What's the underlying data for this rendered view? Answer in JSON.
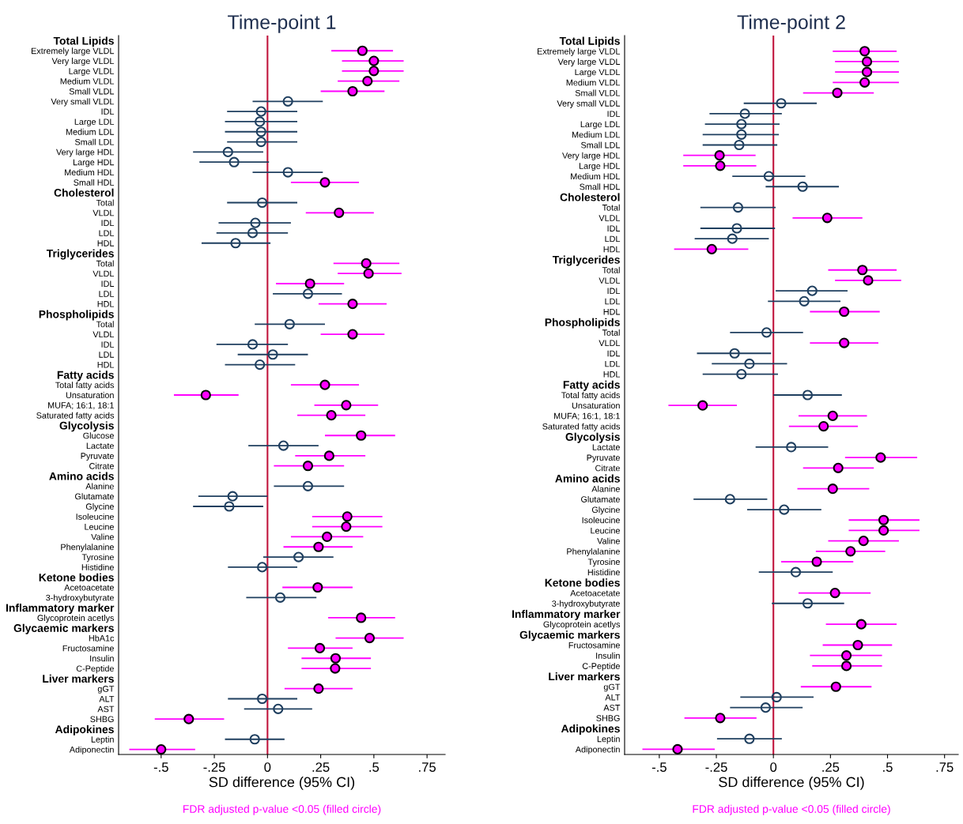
{
  "chart_data": [
    {
      "type": "scatter",
      "orientation": "horizontal",
      "title": "Time-point 1",
      "xlabel": "SD difference (95% CI)",
      "marker": "circle",
      "categories": [
        "Total Lipids",
        "Extremely large VLDL",
        "Very large VLDL",
        "Large VLDL",
        "Medium VLDL",
        "Small VLDL",
        "Very small VLDL",
        "IDL",
        "Large LDL",
        "Medium LDL",
        "Small LDL",
        "Very large HDL",
        "Large HDL",
        "Medium HDL",
        "Small HDL",
        "Cholesterol",
        "Total",
        "VLDL",
        "IDL",
        "LDL",
        "HDL",
        "Triglycerides",
        "Total",
        "VLDL",
        "IDL",
        "LDL",
        "HDL",
        "Phospholipids",
        "Total",
        "VLDL",
        "IDL",
        "LDL",
        "HDL",
        "Fatty acids",
        "Total fatty acids",
        "Unsaturation",
        "MUFA; 16:1, 18:1",
        "Saturated fatty acids",
        "Glycolysis",
        "Glucose",
        "Lactate",
        "Pyruvate",
        "Citrate",
        "Amino acids",
        "Alanine",
        "Glutamate",
        "Glycine",
        "Isoleucine",
        "Leucine",
        "Valine",
        "Phenylalanine",
        "Tyrosine",
        "Histidine",
        "Ketone bodies",
        "Acetoacetate",
        "3-hydroxybutyrate",
        "Inflammatory marker",
        "Glycoprotein acetlys",
        "Glycaemic markers",
        "HbA1c",
        "Fructosamine",
        "Insulin",
        "C-Peptide",
        "Liver markers",
        "gGT",
        "ALT",
        "AST",
        "SHBG",
        "Adipokines",
        "Leptin",
        "Adiponectin"
      ],
      "series": [
        {
          "color": "#ff00ff",
          "values": [
            null,
            0.446,
            0.5,
            0.5,
            0.47,
            0.4,
            null,
            null,
            null,
            null,
            null,
            null,
            null,
            null,
            0.27,
            null,
            null,
            0.336,
            null,
            null,
            null,
            null,
            0.464,
            0.475,
            0.2,
            null,
            0.4,
            null,
            null,
            0.4,
            null,
            null,
            null,
            null,
            0.27,
            -0.29,
            0.37,
            0.3,
            null,
            0.44,
            null,
            0.29,
            0.19,
            null,
            null,
            null,
            null,
            0.375,
            0.37,
            0.28,
            0.24,
            null,
            null,
            null,
            0.236,
            null,
            null,
            0.44,
            null,
            0.48,
            0.246,
            0.32,
            0.318,
            null,
            0.24,
            null,
            null,
            -0.37,
            null,
            null,
            -0.5
          ],
          "errors": [
            null,
            [
              0.3,
              0.59
            ],
            [
              0.35,
              0.64
            ],
            [
              0.35,
              0.64
            ],
            [
              0.33,
              0.62
            ],
            [
              0.25,
              0.55
            ],
            null,
            null,
            null,
            null,
            null,
            null,
            null,
            null,
            [
              0.11,
              0.43
            ],
            null,
            null,
            [
              0.18,
              0.5
            ],
            null,
            null,
            null,
            null,
            [
              0.31,
              0.62
            ],
            [
              0.33,
              0.63
            ],
            [
              0.04,
              0.36
            ],
            null,
            [
              0.24,
              0.56
            ],
            null,
            null,
            [
              0.25,
              0.55
            ],
            null,
            null,
            null,
            null,
            [
              0.11,
              0.43
            ],
            [
              -0.44,
              -0.136
            ],
            [
              0.22,
              0.52
            ],
            [
              0.14,
              0.46
            ],
            null,
            [
              0.27,
              0.6
            ],
            null,
            [
              0.13,
              0.46
            ],
            [
              0.03,
              0.36
            ],
            null,
            null,
            null,
            null,
            [
              0.21,
              0.54
            ],
            [
              0.21,
              0.54
            ],
            [
              0.11,
              0.45
            ],
            [
              0.075,
              0.4
            ],
            null,
            null,
            null,
            [
              0.07,
              0.4
            ],
            null,
            null,
            [
              0.285,
              0.6
            ],
            null,
            [
              0.32,
              0.64
            ],
            [
              0.096,
              0.4
            ],
            [
              0.16,
              0.486
            ],
            [
              0.16,
              0.486
            ],
            null,
            [
              0.08,
              0.4
            ],
            null,
            null,
            [
              -0.53,
              -0.204
            ],
            null,
            null,
            [
              -0.65,
              -0.34
            ]
          ]
        },
        {
          "color": "#1f3f5f",
          "values": [
            null,
            null,
            null,
            null,
            null,
            null,
            0.096,
            -0.03,
            -0.036,
            -0.03,
            -0.03,
            -0.186,
            -0.157,
            0.096,
            null,
            null,
            -0.025,
            null,
            -0.057,
            -0.07,
            -0.15,
            null,
            null,
            null,
            null,
            0.19,
            null,
            null,
            0.104,
            null,
            -0.07,
            0.025,
            -0.036,
            null,
            null,
            null,
            null,
            null,
            null,
            null,
            0.075,
            null,
            null,
            null,
            0.19,
            -0.164,
            -0.18,
            null,
            null,
            null,
            null,
            0.146,
            -0.025,
            null,
            null,
            0.06,
            null,
            null,
            null,
            null,
            null,
            null,
            null,
            null,
            null,
            -0.025,
            0.05,
            null,
            null,
            -0.06,
            null
          ],
          "errors": [
            null,
            null,
            null,
            null,
            null,
            null,
            [
              -0.07,
              0.26
            ],
            [
              -0.19,
              0.14
            ],
            [
              -0.2,
              0.14
            ],
            [
              -0.2,
              0.14
            ],
            [
              -0.19,
              0.14
            ],
            [
              -0.35,
              -0.02
            ],
            [
              -0.32,
              0.007
            ],
            [
              -0.07,
              0.26
            ],
            null,
            null,
            [
              -0.19,
              0.14
            ],
            null,
            [
              -0.23,
              0.11
            ],
            [
              -0.24,
              0.096
            ],
            [
              -0.31,
              0.014
            ],
            null,
            null,
            null,
            null,
            [
              0.025,
              0.35
            ],
            null,
            null,
            [
              -0.06,
              0.27
            ],
            null,
            [
              -0.24,
              0.096
            ],
            [
              -0.14,
              0.19
            ],
            [
              -0.2,
              0.13
            ],
            null,
            null,
            null,
            null,
            null,
            null,
            null,
            [
              -0.09,
              0.24
            ],
            null,
            null,
            null,
            [
              0.03,
              0.36
            ],
            [
              -0.325,
              0
            ],
            [
              -0.35,
              -0.02
            ],
            null,
            null,
            null,
            null,
            [
              -0.02,
              0.31
            ],
            [
              -0.186,
              0.14
            ],
            null,
            null,
            [
              -0.1,
              0.23
            ],
            null,
            null,
            null,
            null,
            null,
            null,
            null,
            null,
            null,
            [
              -0.186,
              0.14
            ],
            [
              -0.11,
              0.21
            ],
            null,
            null,
            [
              -0.2,
              0.08
            ],
            null
          ]
        }
      ],
      "xlim": [
        -0.7,
        0.835
      ],
      "xticks": [
        {
          "value": -0.5,
          "label": "-.5"
        },
        {
          "value": -0.25,
          "label": "-.25"
        },
        0,
        {
          "value": 0.25,
          "label": ".25"
        },
        {
          "value": 0.5,
          "label": ".5"
        },
        {
          "value": 0.75,
          "label": ".75"
        }
      ],
      "ref_lines": [
        {
          "axis": "x",
          "value": 0,
          "color": "#c0143c"
        }
      ],
      "annotations": [
        "FDR adjusted p-value <0.05 (filled circle)"
      ]
    },
    {
      "type": "scatter",
      "orientation": "horizontal",
      "title": "Time-point 2",
      "xlabel": "SD difference (95% CI)",
      "marker": "circle",
      "categories": [
        "Total Lipids",
        "Extremely large VLDL",
        "Very large VLDL",
        "Large VLDL",
        "Medium VLDL",
        "Small VLDL",
        "Very small VLDL",
        "IDL",
        "Large LDL",
        "Medium LDL",
        "Small LDL",
        "Very large HDL",
        "Large HDL",
        "Medium HDL",
        "Small HDL",
        "Cholesterol",
        "Total",
        "VLDL",
        "IDL",
        "LDL",
        "HDL",
        "Triglycerides",
        "Total",
        "VLDL",
        "IDL",
        "LDL",
        "HDL",
        "Phospholipids",
        "Total",
        "VLDL",
        "IDL",
        "LDL",
        "HDL",
        "Fatty acids",
        "Total fatty acids",
        "Unsaturation",
        "MUFA; 16:1, 18:1",
        "Saturated fatty acids",
        "Glycolysis",
        "Lactate",
        "Pyruvate",
        "Citrate",
        "Amino acids",
        "Alanine",
        "Glutamate",
        "Glycine",
        "Isoleucine",
        "Leucine",
        "Valine",
        "Phenylalanine",
        "Tyrosine",
        "Histidine",
        "Ketone bodies",
        "Acetoacetate",
        "3-hydroxybutyrate",
        "Inflammatory marker",
        "Glycoprotein acetlys",
        "Glycaemic markers",
        "Fructosamine",
        "Insulin",
        "C-Peptide",
        "Liver markers",
        "gGT",
        "ALT",
        "AST",
        "SHBG",
        "Adipokines",
        "Leptin",
        "Adiponectin"
      ],
      "series": [
        {
          "color": "#ff00ff",
          "values": [
            null,
            0.4,
            0.41,
            0.41,
            0.4,
            0.28,
            null,
            null,
            null,
            null,
            null,
            -0.236,
            -0.233,
            null,
            null,
            null,
            null,
            0.236,
            null,
            null,
            -0.27,
            null,
            0.39,
            0.415,
            null,
            null,
            0.31,
            null,
            null,
            0.31,
            null,
            null,
            null,
            null,
            null,
            -0.31,
            0.26,
            0.22,
            null,
            null,
            0.47,
            0.284,
            null,
            0.26,
            null,
            null,
            0.483,
            0.483,
            0.395,
            0.338,
            0.19,
            null,
            null,
            0.27,
            null,
            null,
            0.385,
            null,
            0.37,
            0.32,
            0.32,
            null,
            0.274,
            null,
            null,
            -0.233,
            null,
            null,
            -0.42
          ],
          "errors": [
            null,
            [
              0.26,
              0.54
            ],
            [
              0.27,
              0.55
            ],
            [
              0.27,
              0.55
            ],
            [
              0.26,
              0.55
            ],
            [
              0.13,
              0.44
            ],
            null,
            null,
            null,
            null,
            null,
            [
              -0.395,
              -0.078
            ],
            [
              -0.395,
              -0.075
            ],
            null,
            null,
            null,
            null,
            [
              0.084,
              0.39
            ],
            null,
            null,
            [
              -0.435,
              -0.11
            ],
            null,
            [
              0.24,
              0.54
            ],
            [
              0.27,
              0.56
            ],
            null,
            null,
            [
              0.16,
              0.466
            ],
            null,
            null,
            [
              0.16,
              0.46
            ],
            null,
            null,
            null,
            null,
            null,
            [
              -0.46,
              -0.16
            ],
            [
              0.11,
              0.41
            ],
            [
              0.068,
              0.37
            ],
            null,
            null,
            [
              0.314,
              0.63
            ],
            [
              0.13,
              0.44
            ],
            null,
            [
              0.105,
              0.42
            ],
            null,
            null,
            [
              0.33,
              0.64
            ],
            [
              0.33,
              0.64
            ],
            [
              0.24,
              0.55
            ],
            [
              0.186,
              0.49
            ],
            [
              0.034,
              0.35
            ],
            null,
            null,
            [
              0.11,
              0.426
            ],
            null,
            null,
            [
              0.23,
              0.54
            ],
            null,
            [
              0.216,
              0.52
            ],
            [
              0.16,
              0.476
            ],
            [
              0.17,
              0.476
            ],
            null,
            [
              0.12,
              0.43
            ],
            null,
            null,
            [
              -0.39,
              -0.074
            ],
            null,
            null,
            [
              -0.574,
              -0.257
            ]
          ]
        },
        {
          "color": "#1f3f5f",
          "values": [
            null,
            null,
            null,
            null,
            null,
            null,
            0.034,
            -0.125,
            -0.14,
            -0.14,
            -0.15,
            null,
            null,
            -0.02,
            0.128,
            null,
            -0.155,
            null,
            -0.16,
            -0.18,
            null,
            null,
            null,
            null,
            0.17,
            0.135,
            null,
            null,
            -0.03,
            null,
            -0.17,
            -0.105,
            -0.14,
            null,
            0.15,
            null,
            null,
            null,
            null,
            0.078,
            null,
            null,
            null,
            null,
            -0.19,
            0.047,
            null,
            null,
            null,
            null,
            null,
            0.098,
            null,
            null,
            0.15,
            null,
            null,
            null,
            null,
            null,
            null,
            null,
            null,
            0.014,
            -0.034,
            null,
            null,
            -0.105,
            null
          ],
          "errors": [
            null,
            null,
            null,
            null,
            null,
            null,
            [
              -0.13,
              0.19
            ],
            [
              -0.28,
              0.037
            ],
            [
              -0.3,
              0.027
            ],
            [
              -0.31,
              0.024
            ],
            [
              -0.31,
              0.017
            ],
            null,
            null,
            [
              -0.18,
              0.14
            ],
            [
              -0.034,
              0.287
            ],
            null,
            [
              -0.32,
              0.01
            ],
            null,
            [
              -0.32,
              0.007
            ],
            [
              -0.345,
              -0.02
            ],
            null,
            null,
            null,
            null,
            [
              0.01,
              0.325
            ],
            [
              -0.024,
              0.294
            ],
            null,
            null,
            [
              -0.19,
              0.13
            ],
            null,
            [
              -0.335,
              -0.01
            ],
            [
              -0.27,
              0.06
            ],
            [
              -0.31,
              0.02
            ],
            null,
            [
              0,
              0.3
            ],
            null,
            null,
            null,
            null,
            [
              -0.078,
              0.24
            ],
            null,
            null,
            null,
            null,
            [
              -0.35,
              -0.027
            ],
            [
              -0.115,
              0.21
            ],
            null,
            null,
            null,
            null,
            null,
            [
              -0.064,
              0.26
            ],
            null,
            null,
            [
              -0.007,
              0.31
            ],
            null,
            null,
            null,
            null,
            null,
            null,
            null,
            null,
            [
              -0.145,
              0.176
            ],
            [
              -0.19,
              0.128
            ],
            null,
            null,
            [
              -0.247,
              0.037
            ],
            null
          ]
        }
      ],
      "xlim": [
        -0.652,
        0.81
      ],
      "xticks": [
        {
          "value": -0.5,
          "label": "-.5"
        },
        {
          "value": -0.25,
          "label": "-.25"
        },
        0,
        {
          "value": 0.25,
          "label": ".25"
        },
        {
          "value": 0.5,
          "label": ".5"
        },
        {
          "value": 0.75,
          "label": ".75"
        }
      ],
      "ref_lines": [
        {
          "axis": "x",
          "value": 0,
          "color": "#c0143c"
        }
      ],
      "annotations": [
        "FDR adjusted p-value <0.05 (filled circle)"
      ]
    }
  ]
}
